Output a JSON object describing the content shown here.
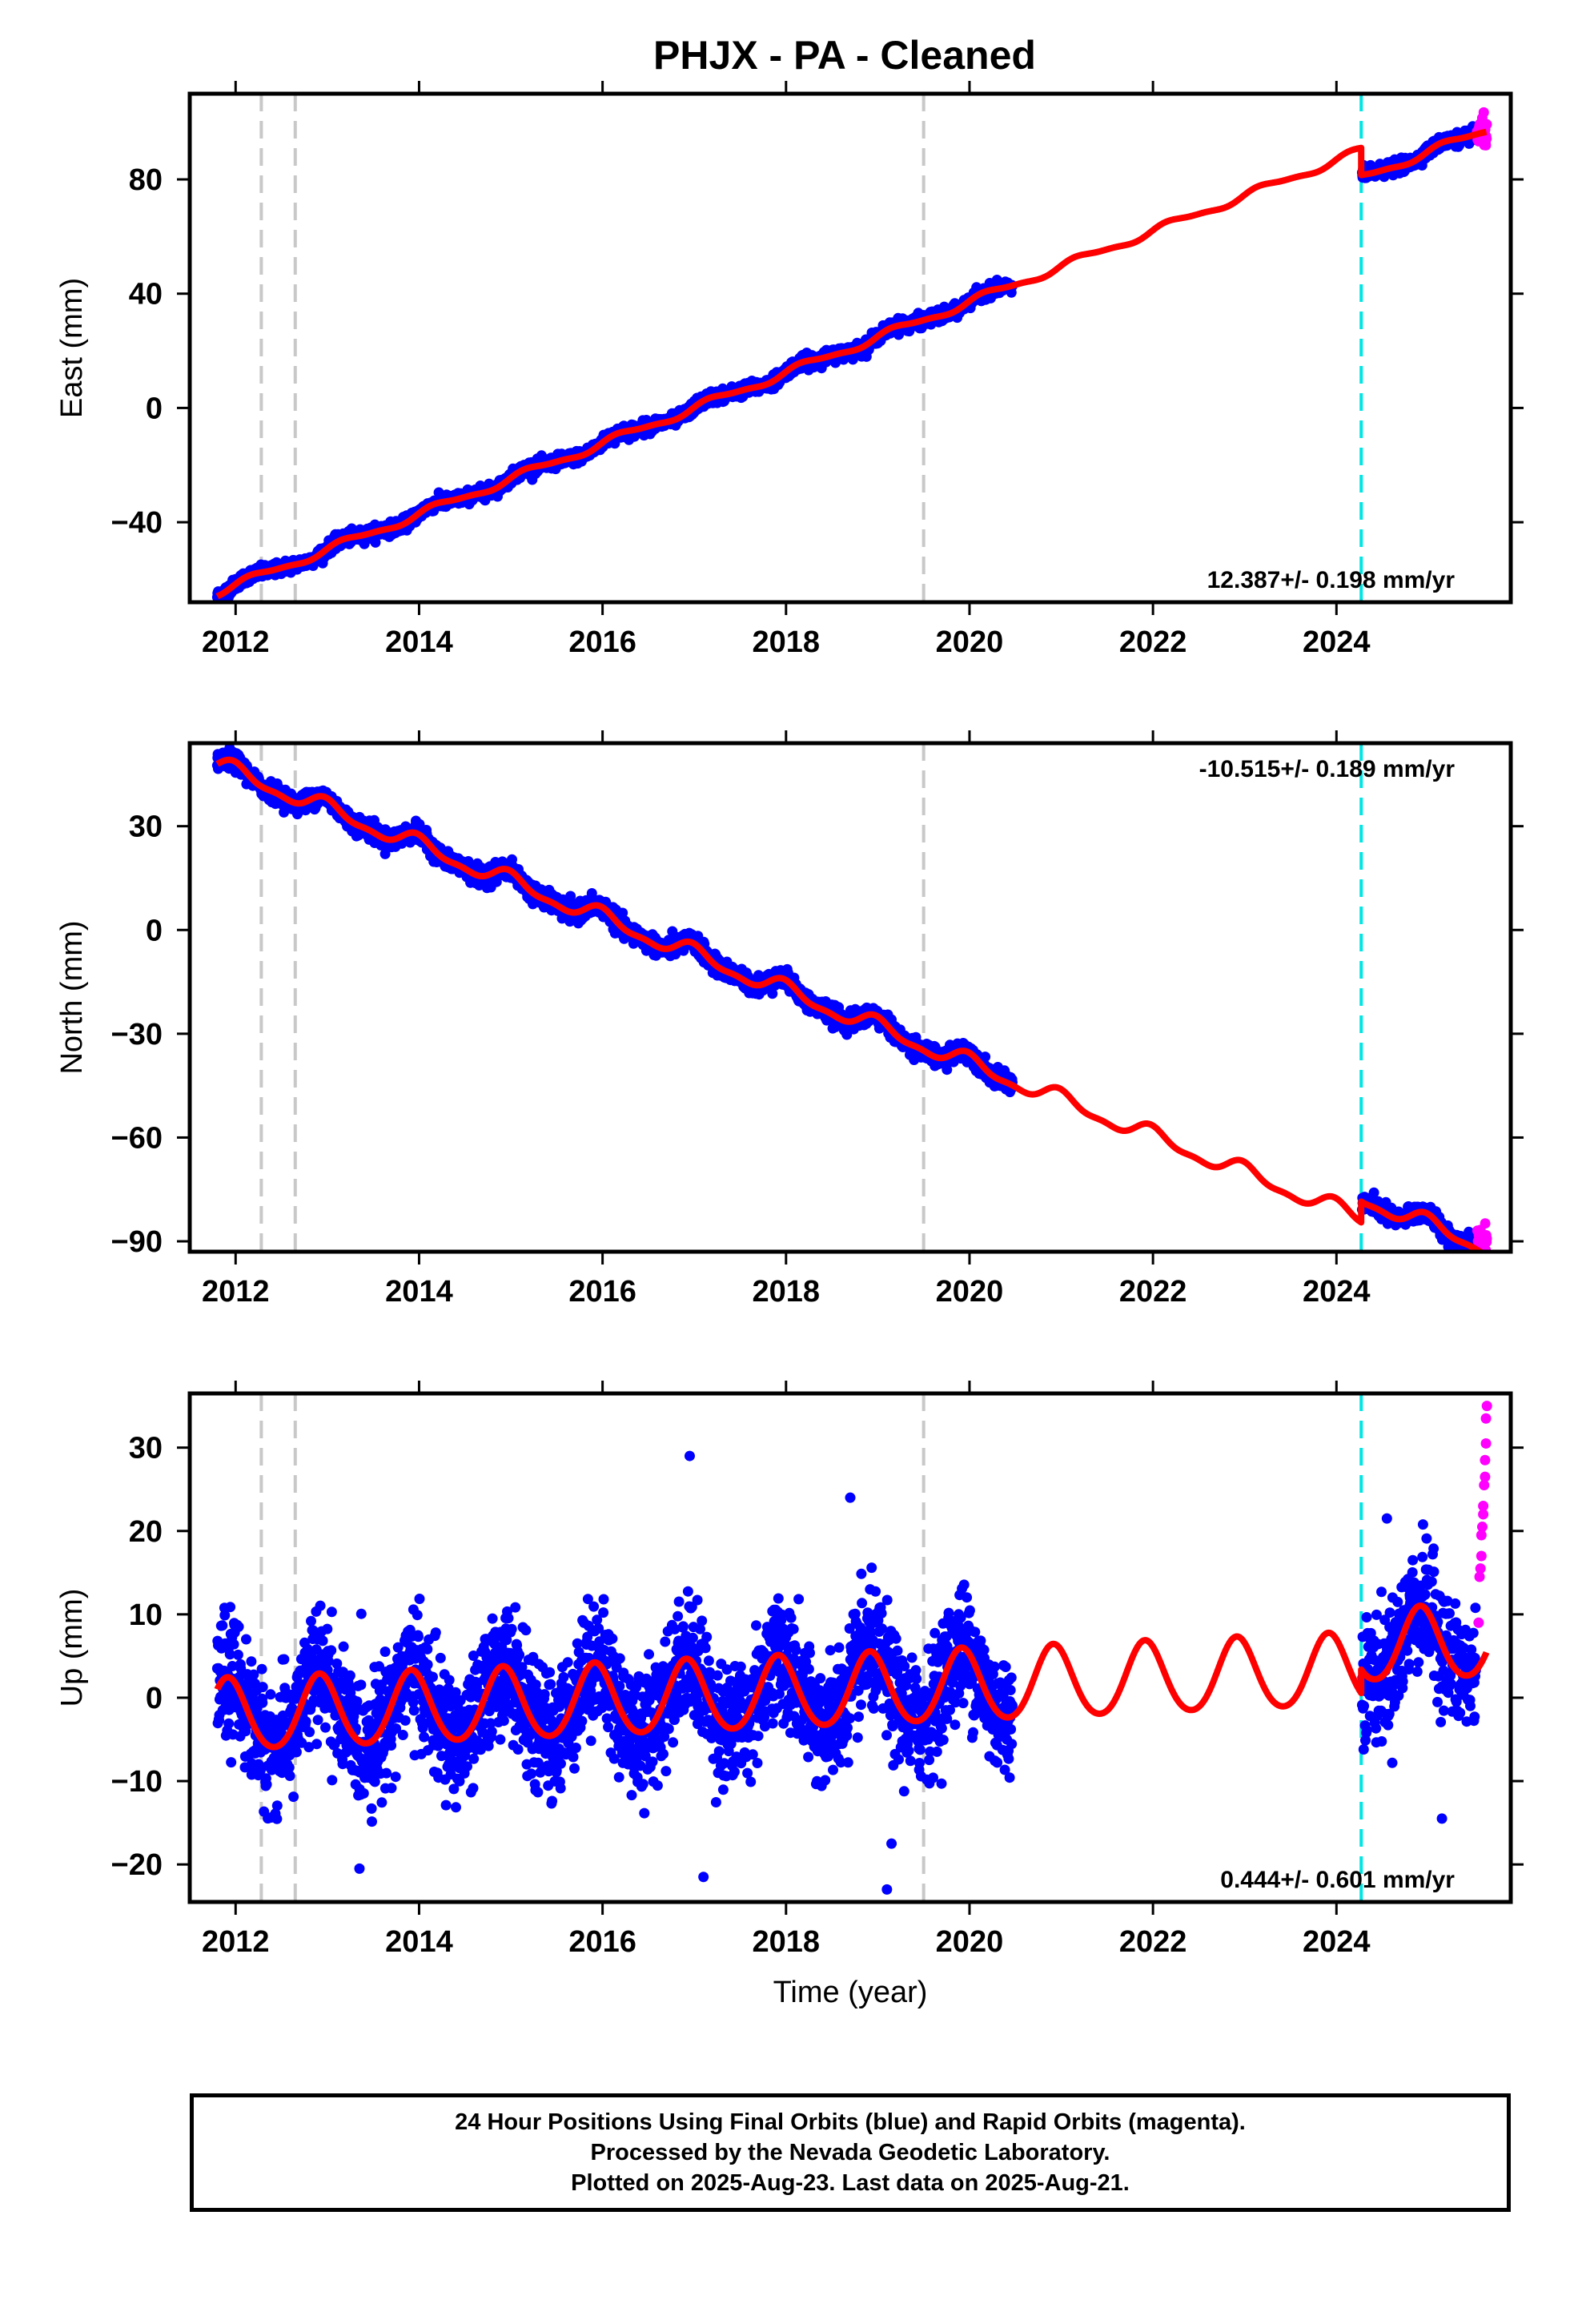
{
  "title": "PHJX  - PA - Cleaned",
  "footer": {
    "line1": "24 Hour Positions Using Final Orbits (blue) and Rapid Orbits (magenta).",
    "line2": "Processed by the Nevada Geodetic Laboratory.",
    "line3": "Plotted on 2025-Aug-23. Last data on 2025-Aug-21."
  },
  "colors": {
    "final_orbits": "#0000ff",
    "rapid_orbits": "#ff00ff",
    "model": "#ff0000",
    "equipment_change": "#c8c8c8",
    "earthquake_offset": "#00e5e5"
  },
  "chart_data": [
    {
      "type": "scatter",
      "ylabel": "East (mm)",
      "xlabel": "",
      "xlim": [
        2011.5,
        2025.9
      ],
      "ylim": [
        -68,
        110
      ],
      "xticks": [
        2012,
        2014,
        2016,
        2018,
        2020,
        2022,
        2024
      ],
      "yticks": [
        -40,
        0,
        40,
        80
      ],
      "rate_label": "12.387+/- 0.198 mm/yr",
      "rate_position": "bottom-right",
      "gray_dashed_lines": [
        2012.28,
        2012.65,
        2019.5
      ],
      "cyan_dashed_lines": [
        2024.27
      ],
      "model": {
        "rate": 12.387,
        "offset_at_2012": -62,
        "annual_amp": 1.3,
        "semiannual_amp": 0.4,
        "phase": 0.2,
        "steps": [
          {
            "x": 2024.27,
            "dy": -9.5
          }
        ],
        "noise": 1.1,
        "noise_rapid": 2.5
      },
      "series": [
        {
          "name": "Final Orbits",
          "segments": [
            [
              2011.8,
              2020.47
            ],
            [
              2024.28,
              2025.52
            ]
          ]
        },
        {
          "name": "Rapid Orbits",
          "segments": [
            [
              2025.53,
              2025.64
            ]
          ]
        }
      ]
    },
    {
      "type": "scatter",
      "ylabel": "North (mm)",
      "xlabel": "",
      "xlim": [
        2011.5,
        2025.9
      ],
      "ylim": [
        -93,
        54
      ],
      "xticks": [
        2012,
        2014,
        2016,
        2018,
        2020,
        2022,
        2024
      ],
      "yticks": [
        -90,
        -60,
        -30,
        0,
        30
      ],
      "rate_label": "-10.515+/- 0.189 mm/yr",
      "rate_position": "top-right",
      "gray_dashed_lines": [
        2012.28,
        2012.65,
        2019.5
      ],
      "cyan_dashed_lines": [
        2024.27
      ],
      "model": {
        "rate": -10.515,
        "offset_at_2012": 45.5,
        "annual_amp": 2.3,
        "semiannual_amp": 0.9,
        "phase": 1.6,
        "steps": [
          {
            "x": 2024.27,
            "dy": 6
          }
        ],
        "noise": 1.3,
        "noise_rapid": 2.8
      },
      "series": [
        {
          "name": "Final Orbits",
          "segments": [
            [
              2011.8,
              2020.47
            ],
            [
              2024.28,
              2025.52
            ]
          ]
        },
        {
          "name": "Rapid Orbits",
          "segments": [
            [
              2025.53,
              2025.64
            ]
          ]
        }
      ]
    },
    {
      "type": "scatter",
      "ylabel": "Up (mm)",
      "xlabel": "Time (year)",
      "xlim": [
        2011.5,
        2025.9
      ],
      "ylim": [
        -24.5,
        36.5
      ],
      "xticks": [
        2012,
        2014,
        2016,
        2018,
        2020,
        2022,
        2024
      ],
      "yticks": [
        -20,
        -10,
        0,
        10,
        20,
        30
      ],
      "rate_label": "0.444+/- 0.601 mm/yr",
      "rate_position": "bottom-right",
      "gray_dashed_lines": [
        2012.28,
        2012.65,
        2019.5
      ],
      "cyan_dashed_lines": [
        2024.27
      ],
      "model": {
        "rate": 0.444,
        "offset_at_2012": -2.2,
        "annual_amp": 4.3,
        "semiannual_amp": 0.4,
        "phase": 2.1,
        "steps": [
          {
            "x": 2024.27,
            "dy": 2.8
          }
        ],
        "noise": 3.6,
        "noise_rapid": 9
      },
      "outliers": [
        {
          "x": 2016.95,
          "y": 29
        },
        {
          "x": 2018.7,
          "y": 24
        },
        {
          "x": 2024.55,
          "y": 21.5
        },
        {
          "x": 2017.1,
          "y": -21.5
        },
        {
          "x": 2019.1,
          "y": -23
        },
        {
          "x": 2013.35,
          "y": -20.5
        },
        {
          "x": 2019.15,
          "y": -17.5
        },
        {
          "x": 2025.15,
          "y": -14.5
        }
      ],
      "rapid_points": [
        {
          "x": 2025.55,
          "y": 9
        },
        {
          "x": 2025.56,
          "y": 14.5
        },
        {
          "x": 2025.57,
          "y": 15.5
        },
        {
          "x": 2025.58,
          "y": 17
        },
        {
          "x": 2025.58,
          "y": 19.5
        },
        {
          "x": 2025.59,
          "y": 20.5
        },
        {
          "x": 2025.6,
          "y": 22
        },
        {
          "x": 2025.6,
          "y": 23
        },
        {
          "x": 2025.61,
          "y": 25.5
        },
        {
          "x": 2025.62,
          "y": 26.5
        },
        {
          "x": 2025.62,
          "y": 28.5
        },
        {
          "x": 2025.63,
          "y": 30.5
        },
        {
          "x": 2025.63,
          "y": 33.5
        },
        {
          "x": 2025.64,
          "y": 35
        }
      ],
      "series": [
        {
          "name": "Final Orbits",
          "segments": [
            [
              2011.8,
              2020.47
            ],
            [
              2024.28,
              2025.52
            ]
          ]
        }
      ]
    }
  ]
}
